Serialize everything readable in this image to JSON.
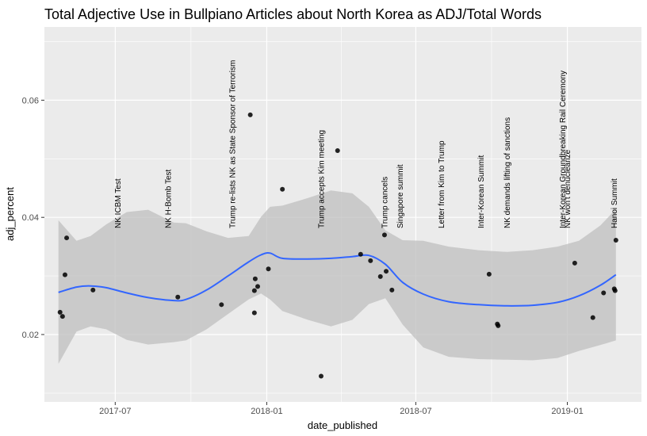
{
  "chart_data": {
    "type": "scatter",
    "title": "Total Adjective Use in Bullpiano Articles about North Korea as ADJ/Total Words",
    "xlabel": "date_published",
    "ylabel": "adj_percent",
    "x_ticks": [
      "2017-07",
      "2018-01",
      "2018-07",
      "2019-01"
    ],
    "y_ticks": [
      "0.02",
      "0.04",
      "0.06"
    ],
    "x_range": [
      "2017-04-06",
      "2019-04-01"
    ],
    "y_range": [
      0.0085,
      0.0725
    ],
    "grid": true,
    "background": "#ebebeb",
    "colors": {
      "points": "#000000",
      "smooth_line": "#3366ff",
      "ribbon": "#bfbfbf"
    },
    "points": [
      {
        "x": "2017-04-25",
        "y": 0.0238
      },
      {
        "x": "2017-04-28",
        "y": 0.0231
      },
      {
        "x": "2017-05-01",
        "y": 0.0302
      },
      {
        "x": "2017-05-03",
        "y": 0.0365
      },
      {
        "x": "2017-06-04",
        "y": 0.0276
      },
      {
        "x": "2017-09-15",
        "y": 0.0264
      },
      {
        "x": "2017-11-07",
        "y": 0.0251
      },
      {
        "x": "2017-12-12",
        "y": 0.0575
      },
      {
        "x": "2017-12-17",
        "y": 0.0237
      },
      {
        "x": "2017-12-18",
        "y": 0.0295
      },
      {
        "x": "2017-12-21",
        "y": 0.0282
      },
      {
        "x": "2017-12-17",
        "y": 0.0275
      },
      {
        "x": "2018-01-03",
        "y": 0.0312
      },
      {
        "x": "2018-01-20",
        "y": 0.0448
      },
      {
        "x": "2018-03-08",
        "y": 0.0129
      },
      {
        "x": "2018-03-28",
        "y": 0.0514
      },
      {
        "x": "2018-04-25",
        "y": 0.0337
      },
      {
        "x": "2018-05-07",
        "y": 0.0326
      },
      {
        "x": "2018-05-19",
        "y": 0.0299
      },
      {
        "x": "2018-05-24",
        "y": 0.037
      },
      {
        "x": "2018-05-26",
        "y": 0.0308
      },
      {
        "x": "2018-06-02",
        "y": 0.0276
      },
      {
        "x": "2018-09-28",
        "y": 0.0303
      },
      {
        "x": "2018-10-08",
        "y": 0.0218
      },
      {
        "x": "2018-10-09",
        "y": 0.0215
      },
      {
        "x": "2019-01-10",
        "y": 0.0322
      },
      {
        "x": "2019-02-01",
        "y": 0.0229
      },
      {
        "x": "2019-02-14",
        "y": 0.0271
      },
      {
        "x": "2019-02-27",
        "y": 0.0278
      },
      {
        "x": "2019-02-28",
        "y": 0.0275
      },
      {
        "x": "2019-03-01",
        "y": 0.0361
      }
    ],
    "smooth": {
      "x": [
        "2017-04-23",
        "2017-05-15",
        "2017-06-01",
        "2017-06-20",
        "2017-07-15",
        "2017-08-10",
        "2017-09-10",
        "2017-09-25",
        "2017-10-20",
        "2017-11-15",
        "2017-12-10",
        "2017-12-25",
        "2018-01-05",
        "2018-01-20",
        "2018-02-20",
        "2018-03-20",
        "2018-04-15",
        "2018-05-05",
        "2018-05-25",
        "2018-06-15",
        "2018-07-10",
        "2018-08-10",
        "2018-09-15",
        "2018-10-20",
        "2018-11-20",
        "2018-12-20",
        "2019-01-15",
        "2019-02-10",
        "2019-03-01"
      ],
      "y": [
        0.0272,
        0.0281,
        0.0283,
        0.028,
        0.0271,
        0.0263,
        0.0258,
        0.026,
        0.0276,
        0.03,
        0.0324,
        0.0336,
        0.0339,
        0.033,
        0.0329,
        0.033,
        0.0333,
        0.0335,
        0.032,
        0.0289,
        0.0269,
        0.0256,
        0.0251,
        0.0249,
        0.025,
        0.0255,
        0.0266,
        0.0284,
        0.0302
      ],
      "ymin": [
        0.015,
        0.0205,
        0.0214,
        0.0209,
        0.0191,
        0.0183,
        0.0187,
        0.019,
        0.0209,
        0.0235,
        0.026,
        0.027,
        0.026,
        0.024,
        0.0225,
        0.0214,
        0.0225,
        0.0252,
        0.0262,
        0.0217,
        0.0178,
        0.0162,
        0.0158,
        0.0157,
        0.0156,
        0.016,
        0.0172,
        0.0182,
        0.019
      ],
      "ymax": [
        0.0395,
        0.036,
        0.0368,
        0.0388,
        0.0409,
        0.0413,
        0.0391,
        0.039,
        0.0376,
        0.0365,
        0.0368,
        0.0401,
        0.0418,
        0.042,
        0.0433,
        0.0446,
        0.0441,
        0.0418,
        0.0378,
        0.0361,
        0.036,
        0.035,
        0.0344,
        0.0341,
        0.0344,
        0.035,
        0.036,
        0.0386,
        0.0414
      ]
    },
    "annotations": [
      {
        "text": "NK ICBM Test",
        "x": "2017-07-04"
      },
      {
        "text": "NK H-Bomb Test",
        "x": "2017-09-03"
      },
      {
        "text": "Trump re-lists NK as State Sponsor of Terrorism",
        "x": "2017-11-20"
      },
      {
        "text": "Trump accepts Kim meeting",
        "x": "2018-03-08"
      },
      {
        "text": "Trump cancels",
        "x": "2018-05-24"
      },
      {
        "text": "Singapore summit",
        "x": "2018-06-12"
      },
      {
        "text": "Letter from Kim to Trump",
        "x": "2018-08-01"
      },
      {
        "text": "Inter-Korean Summit",
        "x": "2018-09-18"
      },
      {
        "text": "NK demands lifting of sanctions",
        "x": "2018-10-20"
      },
      {
        "text": "Inter-Korean Groundbreaking Rail Ceremony",
        "x": "2018-12-26"
      },
      {
        "text": "NK won't denuclearize",
        "x": "2019-01-01"
      },
      {
        "text": "Hanoi Summit",
        "x": "2019-02-27"
      }
    ]
  }
}
